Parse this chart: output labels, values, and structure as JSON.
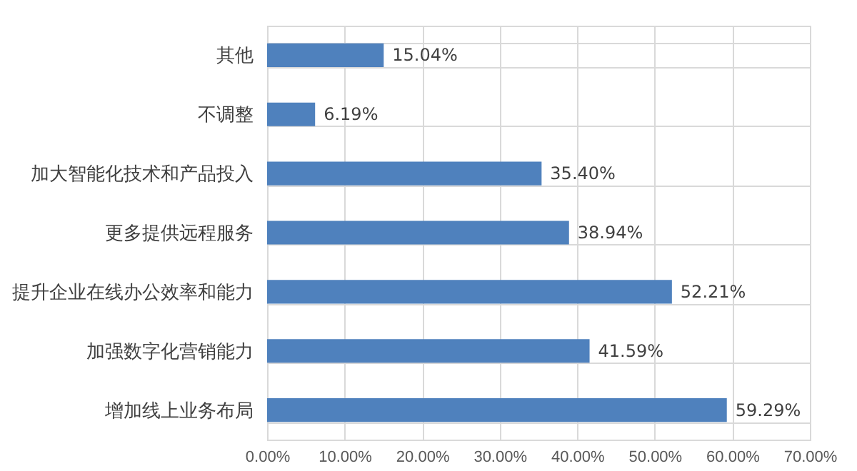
{
  "chart_data": {
    "type": "bar",
    "orientation": "horizontal",
    "categories": [
      "其他",
      "不调整",
      "加大智能化技术和产品投入",
      "更多提供远程服务",
      "提升企业在线办公效率和能力",
      "加强数字化营销能力",
      "增加线上业务布局"
    ],
    "values": [
      15.04,
      6.19,
      35.4,
      38.94,
      52.21,
      41.59,
      59.29
    ],
    "value_labels": [
      "15.04%",
      "6.19%",
      "35.40%",
      "38.94%",
      "52.21%",
      "41.59%",
      "59.29%"
    ],
    "color": "#4f81bd",
    "xlim": [
      0,
      70
    ],
    "xticks": [
      {
        "value": 0,
        "label": "0.00%"
      },
      {
        "value": 10,
        "label": "10.00%"
      },
      {
        "value": 20,
        "label": "20.00%"
      },
      {
        "value": 30,
        "label": "30.00%"
      },
      {
        "value": 40,
        "label": "40.00%"
      },
      {
        "value": 50,
        "label": "50.00%"
      },
      {
        "value": 60,
        "label": "60.00%"
      },
      {
        "value": 70,
        "label": "70.00%"
      }
    ],
    "grid": true
  }
}
